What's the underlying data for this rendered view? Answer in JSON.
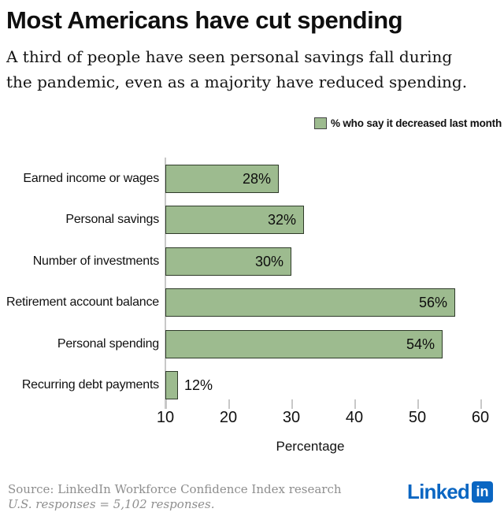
{
  "title": "Most Americans have cut spending",
  "subtitle": {
    "line1": "A third of people have seen personal savings fall during",
    "line2": "the pandemic, even as a majority have reduced spending."
  },
  "legend": {
    "label": "% who say it decreased last month",
    "swatch_color": "#9dbb8f"
  },
  "chart_data": {
    "type": "bar",
    "orientation": "horizontal",
    "categories": [
      "Earned income or wages",
      "Personal savings",
      "Number of investments",
      "Retirement account balance",
      "Personal spending",
      "Recurring debt payments"
    ],
    "values": [
      28,
      32,
      30,
      56,
      54,
      12
    ],
    "value_labels": [
      "28%",
      "32%",
      "30%",
      "56%",
      "54%",
      "12%"
    ],
    "xlabel": "Percentage",
    "x_ticks": [
      10,
      20,
      30,
      40,
      50,
      60
    ],
    "xlim": [
      10,
      62.5
    ],
    "grid": false,
    "legend_position": "top-right",
    "bar_color": "#9dbb8f",
    "bar_border_color": "#2f3b2a"
  },
  "footer": {
    "source_line": "Source: LinkedIn Workforce Confidence Index research",
    "responses_line": "U.S. responses = 5,102 responses.",
    "logo": {
      "wordmark": "Linked",
      "badge": "in",
      "brand_color": "#0a66c2"
    }
  }
}
